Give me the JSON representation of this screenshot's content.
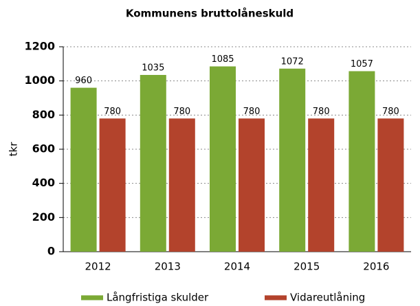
{
  "chart_data": {
    "type": "bar",
    "title": "Kommunens bruttolåneskuld",
    "y_label": "tkr",
    "categories": [
      "2012",
      "2013",
      "2014",
      "2015",
      "2016"
    ],
    "series": [
      {
        "name": "Långfristiga skulder",
        "color": "#7ba935",
        "values": [
          960,
          1035,
          1085,
          1072,
          1057
        ]
      },
      {
        "name": "Vidareutlåning",
        "color": "#b3432c",
        "values": [
          780,
          780,
          780,
          780,
          780
        ]
      }
    ],
    "ylim": [
      0,
      1200
    ],
    "yticks": [
      0,
      200,
      400,
      600,
      800,
      1000,
      1200
    ],
    "grid": true,
    "legend": "bottom"
  }
}
